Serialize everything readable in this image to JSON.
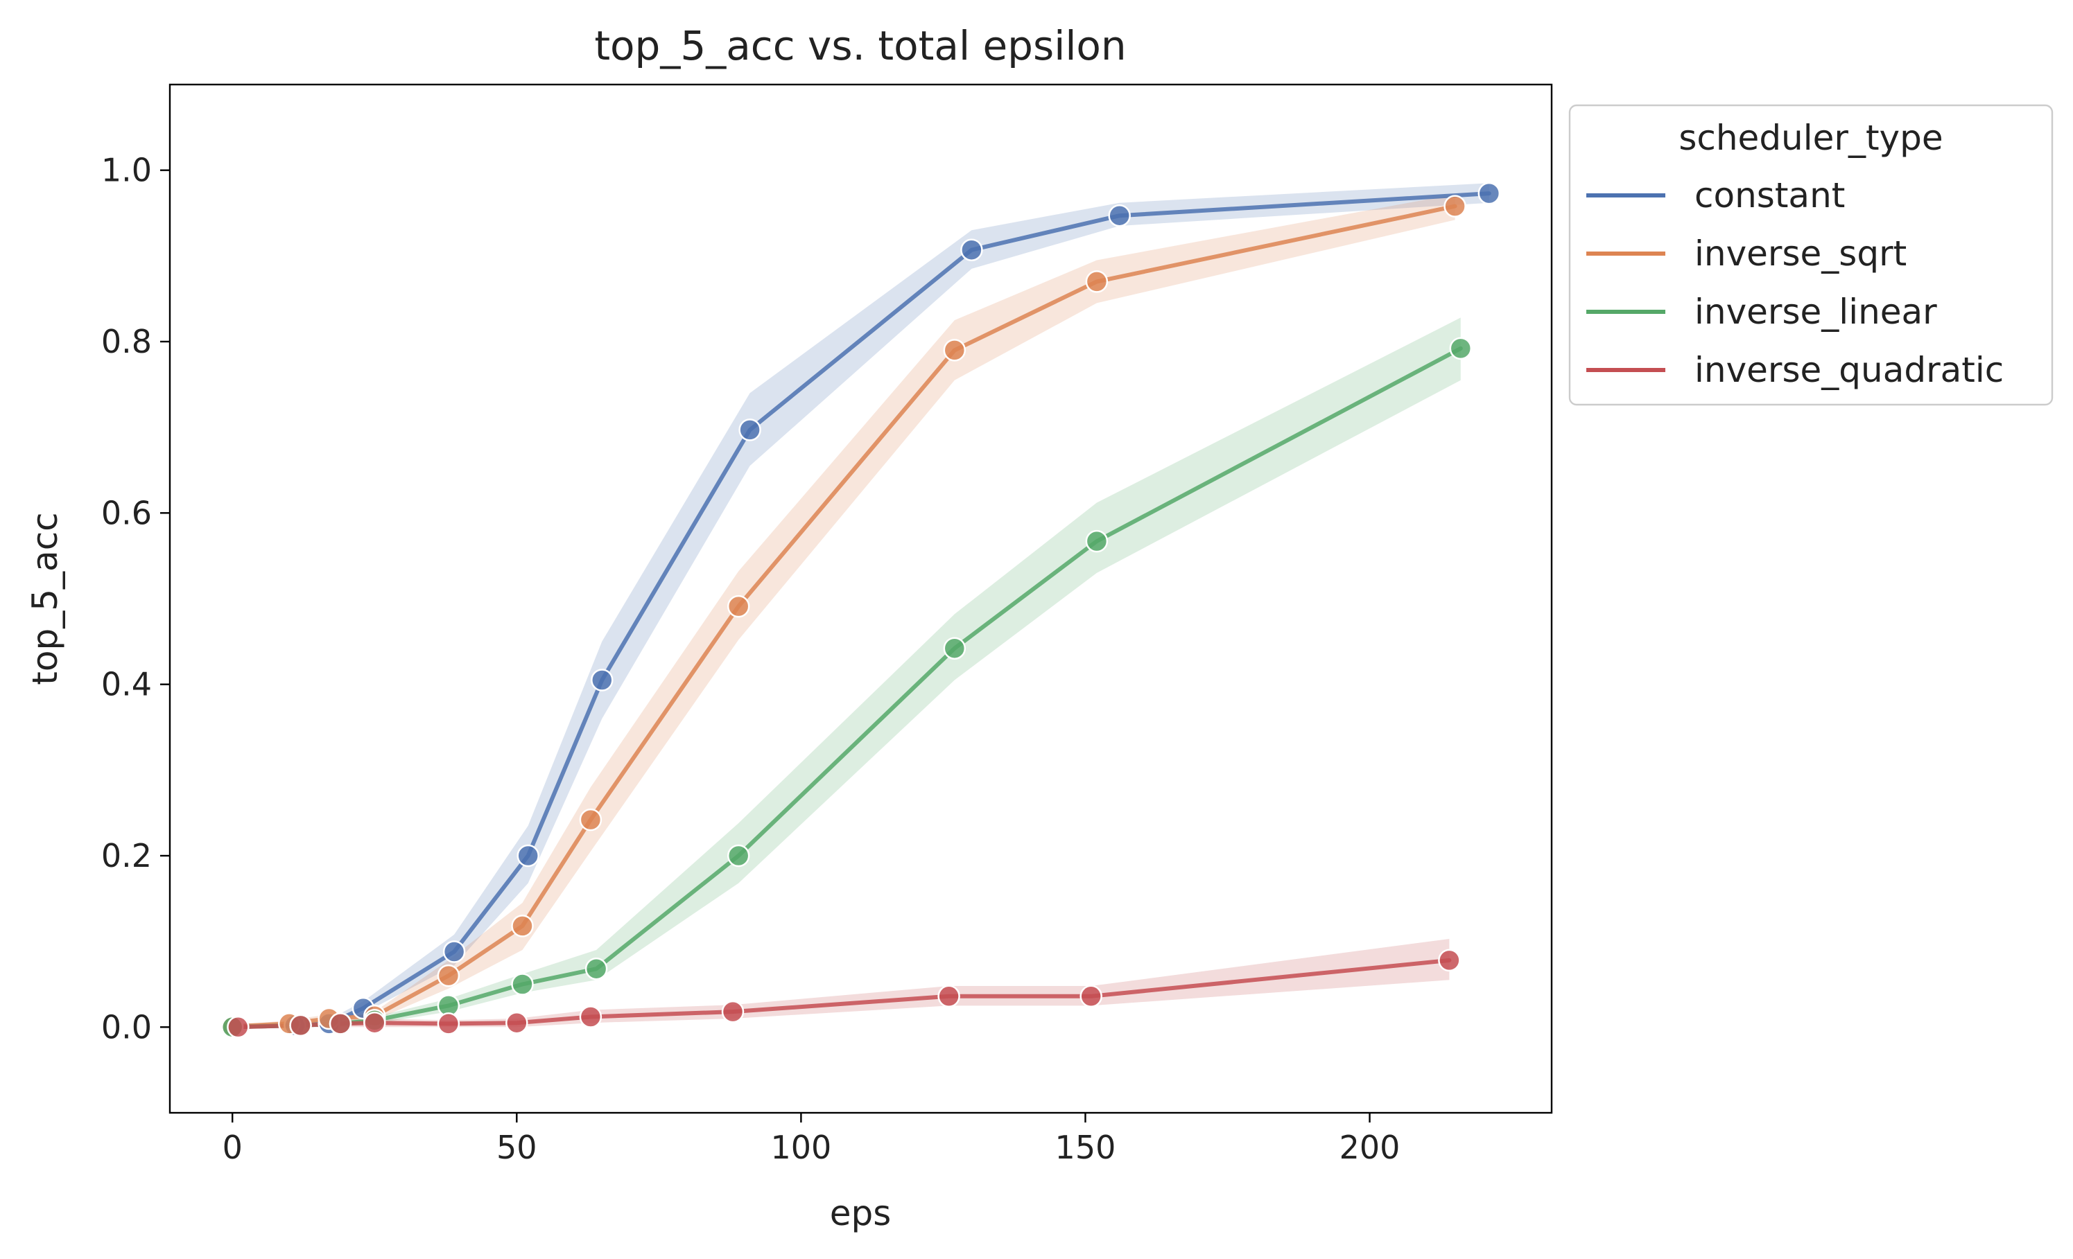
{
  "chart_data": {
    "type": "line",
    "title": "top_5_acc vs. total epsilon",
    "xlabel": "eps",
    "ylabel": "top_5_acc",
    "xlim": [
      -11,
      232
    ],
    "ylim": [
      -0.1,
      1.1
    ],
    "xticks": [
      0,
      50,
      100,
      150,
      200
    ],
    "yticks": [
      0.0,
      0.2,
      0.4,
      0.6,
      0.8,
      1.0
    ],
    "xtick_labels": [
      "0",
      "50",
      "100",
      "150",
      "200"
    ],
    "ytick_labels": [
      "0.0",
      "0.2",
      "0.4",
      "0.6",
      "0.8",
      "1.0"
    ],
    "grid": false,
    "legend": {
      "title": "scheduler_type",
      "position": "outside top-right"
    },
    "series": [
      {
        "name": "constant",
        "color": "#4c72b0",
        "points": [
          {
            "x": 0,
            "y": 0.0,
            "lo": 0.0,
            "hi": 0.0
          },
          {
            "x": 11,
            "y": 0.002,
            "lo": 0.0,
            "hi": 0.005
          },
          {
            "x": 17,
            "y": 0.004,
            "lo": 0.0,
            "hi": 0.009
          },
          {
            "x": 23,
            "y": 0.022,
            "lo": 0.016,
            "hi": 0.03
          },
          {
            "x": 39,
            "y": 0.088,
            "lo": 0.072,
            "hi": 0.108
          },
          {
            "x": 52,
            "y": 0.2,
            "lo": 0.168,
            "hi": 0.235
          },
          {
            "x": 65,
            "y": 0.405,
            "lo": 0.36,
            "hi": 0.45
          },
          {
            "x": 91,
            "y": 0.697,
            "lo": 0.655,
            "hi": 0.74
          },
          {
            "x": 130,
            "y": 0.907,
            "lo": 0.885,
            "hi": 0.93
          },
          {
            "x": 156,
            "y": 0.947,
            "lo": 0.935,
            "hi": 0.962
          },
          {
            "x": 221,
            "y": 0.973,
            "lo": 0.962,
            "hi": 0.985
          }
        ]
      },
      {
        "name": "inverse_sqrt",
        "color": "#dd8452",
        "points": [
          {
            "x": 0,
            "y": 0.001,
            "lo": 0.0,
            "hi": 0.002
          },
          {
            "x": 10,
            "y": 0.004,
            "lo": 0.0,
            "hi": 0.008
          },
          {
            "x": 17,
            "y": 0.01,
            "lo": 0.005,
            "hi": 0.015
          },
          {
            "x": 25,
            "y": 0.013,
            "lo": 0.008,
            "hi": 0.018
          },
          {
            "x": 38,
            "y": 0.06,
            "lo": 0.045,
            "hi": 0.078
          },
          {
            "x": 51,
            "y": 0.118,
            "lo": 0.09,
            "hi": 0.145
          },
          {
            "x": 63,
            "y": 0.242,
            "lo": 0.205,
            "hi": 0.28
          },
          {
            "x": 89,
            "y": 0.491,
            "lo": 0.452,
            "hi": 0.532
          },
          {
            "x": 127,
            "y": 0.79,
            "lo": 0.755,
            "hi": 0.825
          },
          {
            "x": 152,
            "y": 0.87,
            "lo": 0.845,
            "hi": 0.895
          },
          {
            "x": 215,
            "y": 0.958,
            "lo": 0.942,
            "hi": 0.972
          }
        ]
      },
      {
        "name": "inverse_linear",
        "color": "#55a868",
        "points": [
          {
            "x": 0,
            "y": 0.0,
            "lo": 0.0,
            "hi": 0.0
          },
          {
            "x": 12,
            "y": 0.002,
            "lo": 0.0,
            "hi": 0.004
          },
          {
            "x": 19,
            "y": 0.004,
            "lo": 0.001,
            "hi": 0.007
          },
          {
            "x": 25,
            "y": 0.008,
            "lo": 0.004,
            "hi": 0.012
          },
          {
            "x": 38,
            "y": 0.025,
            "lo": 0.018,
            "hi": 0.033
          },
          {
            "x": 51,
            "y": 0.05,
            "lo": 0.04,
            "hi": 0.062
          },
          {
            "x": 64,
            "y": 0.068,
            "lo": 0.055,
            "hi": 0.09
          },
          {
            "x": 89,
            "y": 0.2,
            "lo": 0.168,
            "hi": 0.238
          },
          {
            "x": 127,
            "y": 0.442,
            "lo": 0.405,
            "hi": 0.482
          },
          {
            "x": 152,
            "y": 0.567,
            "lo": 0.53,
            "hi": 0.612
          },
          {
            "x": 216,
            "y": 0.792,
            "lo": 0.755,
            "hi": 0.828
          }
        ]
      },
      {
        "name": "inverse_quadratic",
        "color": "#c44e52",
        "points": [
          {
            "x": 1,
            "y": 0.0,
            "lo": 0.0,
            "hi": 0.0
          },
          {
            "x": 12,
            "y": 0.002,
            "lo": 0.0,
            "hi": 0.005
          },
          {
            "x": 19,
            "y": 0.004,
            "lo": 0.0,
            "hi": 0.008
          },
          {
            "x": 25,
            "y": 0.005,
            "lo": 0.0,
            "hi": 0.01
          },
          {
            "x": 38,
            "y": 0.004,
            "lo": 0.0,
            "hi": 0.008
          },
          {
            "x": 50,
            "y": 0.005,
            "lo": 0.0,
            "hi": 0.01
          },
          {
            "x": 63,
            "y": 0.012,
            "lo": 0.005,
            "hi": 0.02
          },
          {
            "x": 88,
            "y": 0.018,
            "lo": 0.01,
            "hi": 0.026
          },
          {
            "x": 126,
            "y": 0.036,
            "lo": 0.025,
            "hi": 0.048
          },
          {
            "x": 151,
            "y": 0.036,
            "lo": 0.025,
            "hi": 0.048
          },
          {
            "x": 214,
            "y": 0.078,
            "lo": 0.055,
            "hi": 0.103
          }
        ]
      }
    ]
  }
}
